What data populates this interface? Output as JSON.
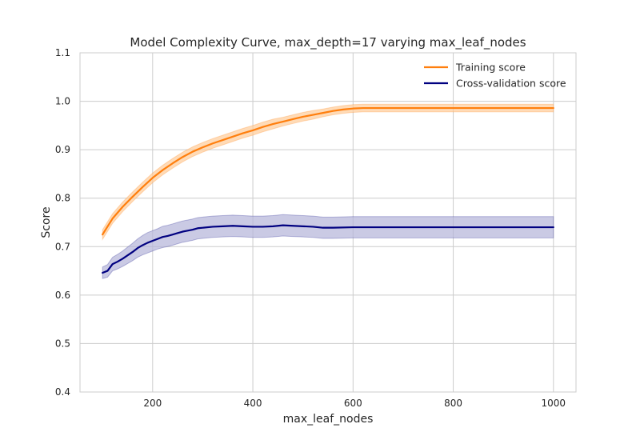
{
  "chart_data": {
    "type": "line",
    "title": "Model Complexity Curve, max_depth=17 varying max_leaf_nodes",
    "xlabel": "max_leaf_nodes",
    "ylabel": "Score",
    "xlim": [
      55,
      1045
    ],
    "ylim": [
      0.4,
      1.1
    ],
    "xticks": [
      200,
      400,
      600,
      800,
      1000
    ],
    "yticks": [
      0.4,
      0.5,
      0.6,
      0.7,
      0.8,
      0.9,
      1.0,
      1.1
    ],
    "xtick_labels": [
      "200",
      "400",
      "600",
      "800",
      "1000"
    ],
    "ytick_labels": [
      "0.4",
      "0.5",
      "0.6",
      "0.7",
      "0.8",
      "0.9",
      "1.0",
      "1.1"
    ],
    "grid": true,
    "legend_position": "top-right",
    "series": [
      {
        "name": "Training score",
        "color": "#ff7f0e",
        "band_color": "#ffcc99",
        "x": [
          100,
          120,
          140,
          160,
          180,
          200,
          220,
          240,
          260,
          280,
          300,
          320,
          340,
          360,
          380,
          400,
          420,
          440,
          460,
          480,
          500,
          520,
          540,
          560,
          580,
          600,
          620,
          650,
          700,
          800,
          900,
          1000
        ],
        "y": [
          0.725,
          0.758,
          0.782,
          0.803,
          0.823,
          0.842,
          0.858,
          0.872,
          0.885,
          0.896,
          0.905,
          0.913,
          0.92,
          0.927,
          0.934,
          0.94,
          0.947,
          0.953,
          0.958,
          0.963,
          0.968,
          0.972,
          0.976,
          0.98,
          0.983,
          0.985,
          0.986,
          0.986,
          0.986,
          0.986,
          0.986,
          0.986
        ],
        "std": [
          0.01,
          0.01,
          0.01,
          0.01,
          0.01,
          0.01,
          0.01,
          0.01,
          0.01,
          0.01,
          0.01,
          0.01,
          0.01,
          0.01,
          0.01,
          0.01,
          0.01,
          0.01,
          0.009,
          0.009,
          0.009,
          0.009,
          0.008,
          0.008,
          0.008,
          0.008,
          0.008,
          0.008,
          0.008,
          0.008,
          0.008,
          0.008
        ]
      },
      {
        "name": "Cross-validation score",
        "color": "#000080",
        "band_color": "#b3b3d9",
        "x": [
          100,
          110,
          120,
          130,
          140,
          150,
          160,
          170,
          180,
          190,
          200,
          210,
          220,
          230,
          240,
          250,
          260,
          270,
          280,
          290,
          300,
          320,
          340,
          360,
          380,
          400,
          420,
          440,
          460,
          480,
          500,
          520,
          540,
          560,
          600,
          700,
          800,
          900,
          1000
        ],
        "y": [
          0.646,
          0.65,
          0.664,
          0.669,
          0.675,
          0.682,
          0.689,
          0.697,
          0.703,
          0.708,
          0.712,
          0.716,
          0.72,
          0.722,
          0.725,
          0.728,
          0.731,
          0.733,
          0.735,
          0.738,
          0.739,
          0.741,
          0.742,
          0.743,
          0.742,
          0.741,
          0.741,
          0.742,
          0.744,
          0.743,
          0.742,
          0.741,
          0.739,
          0.739,
          0.74,
          0.74,
          0.74,
          0.74,
          0.74
        ],
        "std": [
          0.012,
          0.013,
          0.014,
          0.015,
          0.016,
          0.017,
          0.018,
          0.019,
          0.02,
          0.021,
          0.021,
          0.021,
          0.022,
          0.022,
          0.022,
          0.022,
          0.022,
          0.022,
          0.022,
          0.022,
          0.022,
          0.022,
          0.022,
          0.022,
          0.022,
          0.022,
          0.022,
          0.022,
          0.022,
          0.022,
          0.022,
          0.022,
          0.022,
          0.022,
          0.022,
          0.022,
          0.022,
          0.022,
          0.022
        ]
      }
    ]
  }
}
